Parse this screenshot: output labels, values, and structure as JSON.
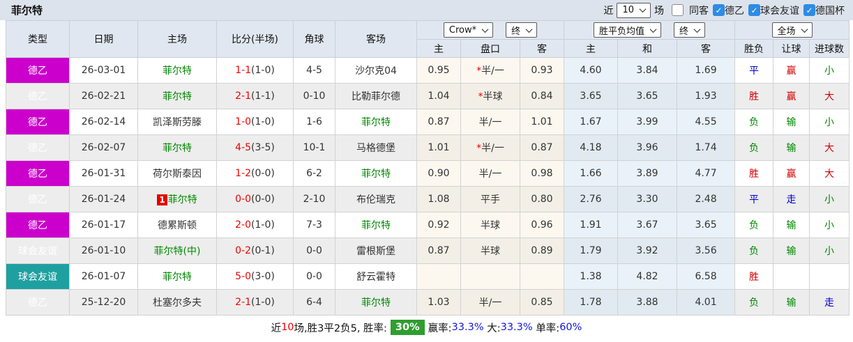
{
  "title": "菲尔特",
  "controls": {
    "recent_label": "近",
    "recent_value": "10",
    "unit_label": "场",
    "checkboxes": [
      {
        "label": "同客",
        "checked": false
      },
      {
        "label": "德乙",
        "checked": true
      },
      {
        "label": "球会友谊",
        "checked": true
      },
      {
        "label": "德国杯",
        "checked": true
      }
    ]
  },
  "colors": {
    "league_de2": "#cc00cc",
    "friendly": "#1fa0a0",
    "win_red": "#d10000",
    "draw_blue": "#0000cc",
    "lose_green": "#008800",
    "rate_badge_green": "#2f9e2f"
  },
  "table": {
    "main_headers": [
      "类型",
      "日期",
      "主场",
      "比分(半场)",
      "角球",
      "客场"
    ],
    "dropdowns": {
      "company": "Crow*",
      "company_time": "终",
      "mean": "胜平负均值",
      "mean_time": "终",
      "scope": "全场"
    },
    "sub_headers": [
      "主",
      "盘口",
      "客",
      "主",
      "和",
      "客",
      "胜负",
      "让球",
      "进球数"
    ],
    "rows": [
      {
        "type": "德乙",
        "type_class": "magenta",
        "date": "26-03-01",
        "home_badge": "",
        "home": "菲尔特",
        "home_class": "green",
        "score": "1-1",
        "half": "(1-0)",
        "corner": "4-5",
        "away": "沙尔克04",
        "away_class": "",
        "o1": "0.95",
        "star": "*",
        "hcp": "半/一",
        "o2": "0.93",
        "m1": "4.60",
        "m2": "3.84",
        "m3": "1.69",
        "r1": "平",
        "r1c": "blue",
        "r2": "赢",
        "r2c": "red",
        "r3": "小",
        "r3c": "green"
      },
      {
        "type": "德乙",
        "type_class": "magenta",
        "date": "26-02-21",
        "home_badge": "",
        "home": "菲尔特",
        "home_class": "green",
        "score": "2-1",
        "half": "(1-1)",
        "corner": "0-10",
        "away": "比勒菲尔德",
        "away_class": "",
        "o1": "1.04",
        "star": "*",
        "hcp": "半球",
        "o2": "0.84",
        "m1": "3.65",
        "m2": "3.65",
        "m3": "1.93",
        "r1": "胜",
        "r1c": "red",
        "r2": "赢",
        "r2c": "red",
        "r3": "大",
        "r3c": "red"
      },
      {
        "type": "德乙",
        "type_class": "magenta",
        "date": "26-02-14",
        "home_badge": "",
        "home": "凯泽斯劳滕",
        "home_class": "",
        "score": "1-0",
        "half": "(1-0)",
        "corner": "1-6",
        "away": "菲尔特",
        "away_class": "green",
        "o1": "0.87",
        "star": "",
        "hcp": "半/一",
        "o2": "1.01",
        "m1": "1.67",
        "m2": "3.99",
        "m3": "4.55",
        "r1": "负",
        "r1c": "green",
        "r2": "输",
        "r2c": "green",
        "r3": "小",
        "r3c": "green"
      },
      {
        "type": "德乙",
        "type_class": "magenta",
        "date": "26-02-07",
        "home_badge": "",
        "home": "菲尔特",
        "home_class": "green",
        "score": "4-5",
        "half": "(3-5)",
        "corner": "10-1",
        "away": "马格德堡",
        "away_class": "",
        "o1": "1.01",
        "star": "*",
        "hcp": "半/一",
        "o2": "0.87",
        "m1": "4.18",
        "m2": "3.96",
        "m3": "1.74",
        "r1": "负",
        "r1c": "green",
        "r2": "输",
        "r2c": "green",
        "r3": "大",
        "r3c": "red"
      },
      {
        "type": "德乙",
        "type_class": "magenta",
        "date": "26-01-31",
        "home_badge": "",
        "home": "荷尔斯泰因",
        "home_class": "",
        "score": "1-2",
        "half": "(0-0)",
        "corner": "6-2",
        "away": "菲尔特",
        "away_class": "green",
        "o1": "0.90",
        "star": "",
        "hcp": "半/一",
        "o2": "0.98",
        "m1": "1.66",
        "m2": "3.89",
        "m3": "4.77",
        "r1": "胜",
        "r1c": "red",
        "r2": "赢",
        "r2c": "red",
        "r3": "大",
        "r3c": "red"
      },
      {
        "type": "德乙",
        "type_class": "magenta",
        "date": "26-01-24",
        "home_badge": "1",
        "home": "菲尔特",
        "home_class": "green",
        "score": "0-0",
        "half": "(0-0)",
        "corner": "2-10",
        "away": "布伦瑞克",
        "away_class": "",
        "o1": "1.08",
        "star": "",
        "hcp": "平手",
        "o2": "0.80",
        "m1": "2.76",
        "m2": "3.30",
        "m3": "2.48",
        "r1": "平",
        "r1c": "blue",
        "r2": "走",
        "r2c": "blue",
        "r3": "小",
        "r3c": "green"
      },
      {
        "type": "德乙",
        "type_class": "magenta",
        "date": "26-01-17",
        "home_badge": "",
        "home": "德累斯顿",
        "home_class": "",
        "score": "2-0",
        "half": "(1-0)",
        "corner": "7-3",
        "away": "菲尔特",
        "away_class": "green",
        "o1": "0.92",
        "star": "",
        "hcp": "半球",
        "o2": "0.96",
        "m1": "1.91",
        "m2": "3.67",
        "m3": "3.65",
        "r1": "负",
        "r1c": "green",
        "r2": "输",
        "r2c": "green",
        "r3": "小",
        "r3c": "green"
      },
      {
        "type": "球会友谊",
        "type_class": "teal",
        "date": "26-01-10",
        "home_badge": "",
        "home": "菲尔特(中)",
        "home_class": "green",
        "score": "0-2",
        "half": "(0-1)",
        "corner": "0-0",
        "away": "雷根斯堡",
        "away_class": "",
        "o1": "0.87",
        "star": "",
        "hcp": "半球",
        "o2": "0.89",
        "m1": "1.79",
        "m2": "3.92",
        "m3": "3.56",
        "r1": "负",
        "r1c": "green",
        "r2": "输",
        "r2c": "green",
        "r3": "小",
        "r3c": "green"
      },
      {
        "type": "球会友谊",
        "type_class": "teal",
        "date": "26-01-07",
        "home_badge": "",
        "home": "菲尔特",
        "home_class": "green",
        "score": "5-0",
        "half": "(3-0)",
        "corner": "0-0",
        "away": "舒云霍特",
        "away_class": "",
        "o1": "",
        "star": "",
        "hcp": "",
        "o2": "",
        "m1": "1.38",
        "m2": "4.82",
        "m3": "6.58",
        "r1": "胜",
        "r1c": "red",
        "r2": "",
        "r2c": "",
        "r3": "",
        "r3c": ""
      },
      {
        "type": "德乙",
        "type_class": "magenta",
        "date": "25-12-20",
        "home_badge": "",
        "home": "杜塞尔多夫",
        "home_class": "",
        "score": "2-1",
        "half": "(1-0)",
        "corner": "6-4",
        "away": "菲尔特",
        "away_class": "green",
        "o1": "1.03",
        "star": "",
        "hcp": "半/一",
        "o2": "0.85",
        "m1": "1.78",
        "m2": "3.88",
        "m3": "4.01",
        "r1": "负",
        "r1c": "green",
        "r2": "输",
        "r2c": "green",
        "r3": "走",
        "r3c": "blue"
      }
    ]
  },
  "footer": {
    "parts": [
      {
        "text": "近",
        "style": "plain"
      },
      {
        "text": "10",
        "style": "red"
      },
      {
        "text": "场,胜3平2负5, 胜率:",
        "style": "plain"
      },
      {
        "text": "30%",
        "style": "badge"
      },
      {
        "text": "赢率:",
        "style": "plain"
      },
      {
        "text": "33.3%",
        "style": "blue"
      },
      {
        "text": " 大:",
        "style": "plain"
      },
      {
        "text": "33.3%",
        "style": "blue"
      },
      {
        "text": " 单率:",
        "style": "plain"
      },
      {
        "text": "60%",
        "style": "blue"
      }
    ]
  }
}
